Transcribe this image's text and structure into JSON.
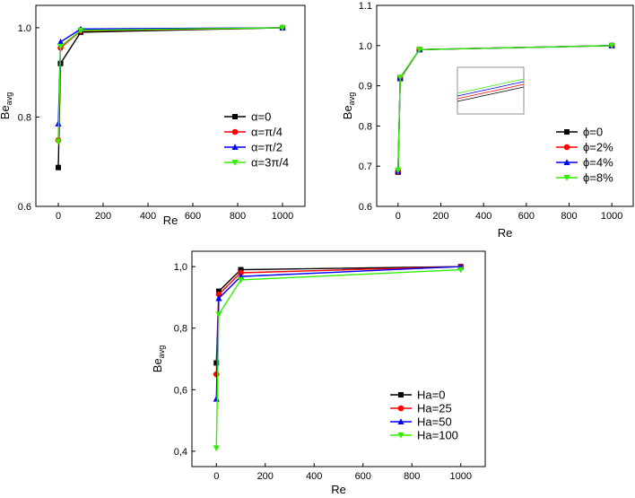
{
  "colors": {
    "black": "#000000",
    "red": "#ff0000",
    "blue": "#0000ff",
    "green": "#33ee00"
  },
  "chart_data": [
    {
      "id": "panel-alpha",
      "type": "line",
      "title": "",
      "xlabel": "Re",
      "ylabel": "Be",
      "ylabel_sub": "avg",
      "xlim": [
        -100,
        1100
      ],
      "ylim": [
        0.6,
        1.05
      ],
      "xticks": [
        0,
        200,
        400,
        600,
        800,
        1000
      ],
      "xtick_labels": [
        "0",
        "200",
        "400",
        "600",
        "800",
        "1000"
      ],
      "yticks": [
        0.6,
        0.8,
        1.0
      ],
      "ytick_labels": [
        "0.6",
        "0.8",
        "1.0"
      ],
      "x": [
        0.01,
        10,
        100,
        1000
      ],
      "legend_position": "right",
      "series": [
        {
          "name": "α=0",
          "color": "#000000",
          "marker": "square",
          "values": [
            0.687,
            0.92,
            0.99,
            1.0
          ]
        },
        {
          "name": "α=π/4",
          "color": "#ff0000",
          "marker": "circle",
          "values": [
            0.748,
            0.955,
            0.993,
            1.0
          ]
        },
        {
          "name": "α=π/2",
          "color": "#0000ff",
          "marker": "triangle-up",
          "values": [
            0.785,
            0.968,
            0.997,
            1.0
          ]
        },
        {
          "name": "α=3π/4",
          "color": "#33ee00",
          "marker": "triangle-down",
          "values": [
            0.745,
            0.958,
            0.994,
            1.0
          ]
        }
      ]
    },
    {
      "id": "panel-phi",
      "type": "line",
      "title": "",
      "xlabel": "Re",
      "ylabel": "Be",
      "ylabel_sub": "avg",
      "xlim": [
        -100,
        1100
      ],
      "ylim": [
        0.6,
        1.1
      ],
      "xticks": [
        0,
        200,
        400,
        600,
        800,
        1000
      ],
      "xtick_labels": [
        "0",
        "200",
        "400",
        "600",
        "800",
        "1000"
      ],
      "yticks": [
        0.6,
        0.7,
        0.8,
        0.9,
        1.0,
        1.1
      ],
      "ytick_labels": [
        "0.6",
        "0.7",
        "0.8",
        "0.9",
        "1.0",
        "1.1"
      ],
      "x": [
        0.01,
        10,
        100,
        1000
      ],
      "legend_position": "right",
      "has_inset": true,
      "series": [
        {
          "name": "ϕ=0",
          "color": "#000000",
          "marker": "square",
          "values": [
            0.685,
            0.918,
            0.99,
            1.0
          ]
        },
        {
          "name": "ϕ=2%",
          "color": "#ff0000",
          "marker": "circle",
          "values": [
            0.686,
            0.919,
            0.99,
            1.0
          ]
        },
        {
          "name": "ϕ=4%",
          "color": "#0000ff",
          "marker": "triangle-up",
          "values": [
            0.688,
            0.92,
            0.99,
            1.0
          ]
        },
        {
          "name": "ϕ=8%",
          "color": "#33ee00",
          "marker": "triangle-down",
          "values": [
            0.69,
            0.921,
            0.99,
            1.0
          ]
        }
      ]
    },
    {
      "id": "panel-ha",
      "type": "line",
      "title": "",
      "xlabel": "Re",
      "ylabel": "Be",
      "ylabel_sub": "avg",
      "xlim": [
        -100,
        1100
      ],
      "ylim": [
        0.35,
        1.05
      ],
      "xticks": [
        0,
        200,
        400,
        600,
        800,
        1000
      ],
      "xtick_labels": [
        "0",
        "200",
        "400",
        "600",
        "800",
        "1000"
      ],
      "yticks": [
        0.4,
        0.6,
        0.8,
        1.0
      ],
      "ytick_labels": [
        "0,4",
        "0,6",
        "0,8",
        "1,0"
      ],
      "x": [
        0.01,
        10,
        100,
        1000
      ],
      "legend_position": "right",
      "series": [
        {
          "name": "Ha=0",
          "color": "#000000",
          "marker": "square",
          "values": [
            0.687,
            0.92,
            0.99,
            1.0
          ]
        },
        {
          "name": "Ha=25",
          "color": "#ff0000",
          "marker": "circle",
          "values": [
            0.65,
            0.91,
            0.98,
            1.0
          ]
        },
        {
          "name": "Ha=50",
          "color": "#0000ff",
          "marker": "triangle-up",
          "values": [
            0.57,
            0.897,
            0.968,
            1.0
          ]
        },
        {
          "name": "Ha=100",
          "color": "#33ee00",
          "marker": "triangle-down",
          "values": [
            0.41,
            0.845,
            0.957,
            0.99
          ]
        }
      ]
    }
  ]
}
